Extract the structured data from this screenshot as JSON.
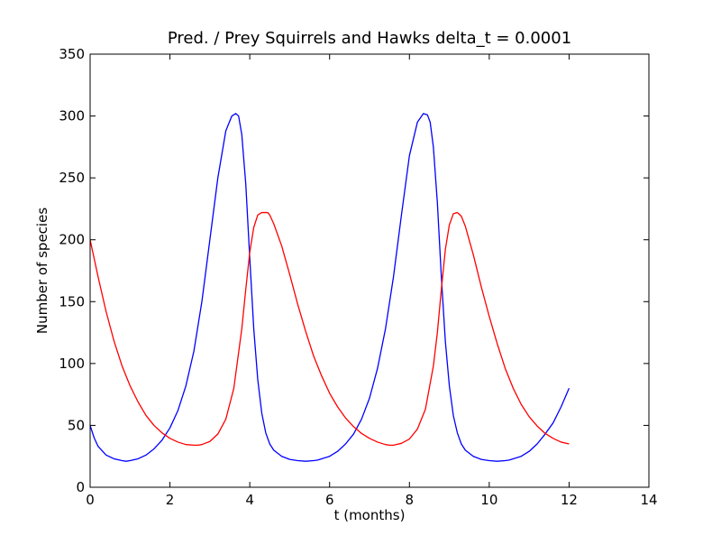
{
  "chart_data": {
    "type": "line",
    "title": "Pred. / Prey Squirrels and Hawks delta_t = 0.0001",
    "xlabel": "t (months)",
    "ylabel": "Number of species",
    "xlim": [
      0,
      14
    ],
    "ylim": [
      0,
      350
    ],
    "xticks": [
      "0",
      "2",
      "4",
      "6",
      "8",
      "10",
      "12",
      "14"
    ],
    "yticks": [
      "0",
      "50",
      "100",
      "150",
      "200",
      "250",
      "300",
      "350"
    ],
    "grid": false,
    "legend": "none",
    "series": [
      {
        "color": "#0000ff",
        "x": [
          0,
          0.1,
          0.2,
          0.4,
          0.6,
          0.8,
          0.9,
          1.0,
          1.2,
          1.4,
          1.6,
          1.8,
          2.0,
          2.2,
          2.4,
          2.6,
          2.8,
          3.0,
          3.2,
          3.4,
          3.55,
          3.65,
          3.72,
          3.8,
          3.9,
          4.0,
          4.1,
          4.2,
          4.3,
          4.4,
          4.5,
          4.6,
          4.8,
          5.0,
          5.2,
          5.4,
          5.6,
          5.7,
          5.8,
          6.0,
          6.2,
          6.4,
          6.6,
          6.8,
          7.0,
          7.2,
          7.4,
          7.6,
          7.8,
          8.0,
          8.2,
          8.35,
          8.45,
          8.52,
          8.6,
          8.7,
          8.8,
          8.9,
          9.0,
          9.1,
          9.2,
          9.3,
          9.4,
          9.6,
          9.8,
          10.0,
          10.2,
          10.4,
          10.5,
          10.6,
          10.8,
          11.0,
          11.2,
          11.4,
          11.6,
          11.8,
          12.0
        ],
        "y": [
          50,
          40,
          33,
          26,
          23,
          21.5,
          21,
          21.5,
          23,
          26,
          31,
          38,
          48,
          62,
          82,
          110,
          150,
          200,
          250,
          288,
          300,
          302,
          300,
          285,
          245,
          185,
          128,
          87,
          60,
          44,
          35,
          30,
          25,
          22.5,
          21.5,
          21,
          21.5,
          22,
          23,
          25,
          29,
          35,
          43,
          55,
          72,
          96,
          128,
          170,
          220,
          268,
          295,
          302,
          301,
          295,
          275,
          230,
          170,
          118,
          82,
          58,
          44,
          35,
          30,
          25,
          22.5,
          21.5,
          21,
          21.5,
          22,
          23,
          25,
          29,
          35,
          43,
          52,
          65,
          80
        ]
      },
      {
        "color": "#ff0000",
        "x": [
          0,
          0.2,
          0.4,
          0.6,
          0.8,
          1.0,
          1.2,
          1.4,
          1.6,
          1.8,
          2.0,
          2.2,
          2.4,
          2.6,
          2.7,
          2.8,
          3.0,
          3.2,
          3.4,
          3.6,
          3.8,
          3.9,
          4.0,
          4.1,
          4.2,
          4.3,
          4.4,
          4.45,
          4.5,
          4.6,
          4.8,
          5.0,
          5.2,
          5.4,
          5.6,
          5.8,
          6.0,
          6.2,
          6.4,
          6.6,
          6.8,
          7.0,
          7.2,
          7.4,
          7.5,
          7.6,
          7.8,
          8.0,
          8.2,
          8.4,
          8.6,
          8.7,
          8.8,
          8.9,
          9.0,
          9.1,
          9.2,
          9.3,
          9.4,
          9.6,
          9.8,
          10.0,
          10.2,
          10.4,
          10.6,
          10.8,
          11.0,
          11.2,
          11.4,
          11.6,
          11.8,
          12.0
        ],
        "y": [
          200,
          170,
          142,
          118,
          98,
          82,
          69,
          58,
          50,
          44,
          39.5,
          36.5,
          34.5,
          34,
          34,
          34.5,
          37,
          43,
          55,
          80,
          128,
          160,
          190,
          210,
          220,
          222,
          222,
          222,
          220,
          213,
          195,
          172,
          148,
          126,
          106,
          90,
          76,
          65,
          56,
          49,
          43.5,
          39.5,
          36.5,
          34.5,
          34,
          34,
          35.5,
          39,
          47,
          63,
          98,
          125,
          160,
          192,
          212,
          221,
          222,
          219,
          211,
          188,
          162,
          138,
          116,
          96,
          80,
          67,
          57,
          49.5,
          43.5,
          39.5,
          36.5,
          35
        ]
      }
    ]
  }
}
